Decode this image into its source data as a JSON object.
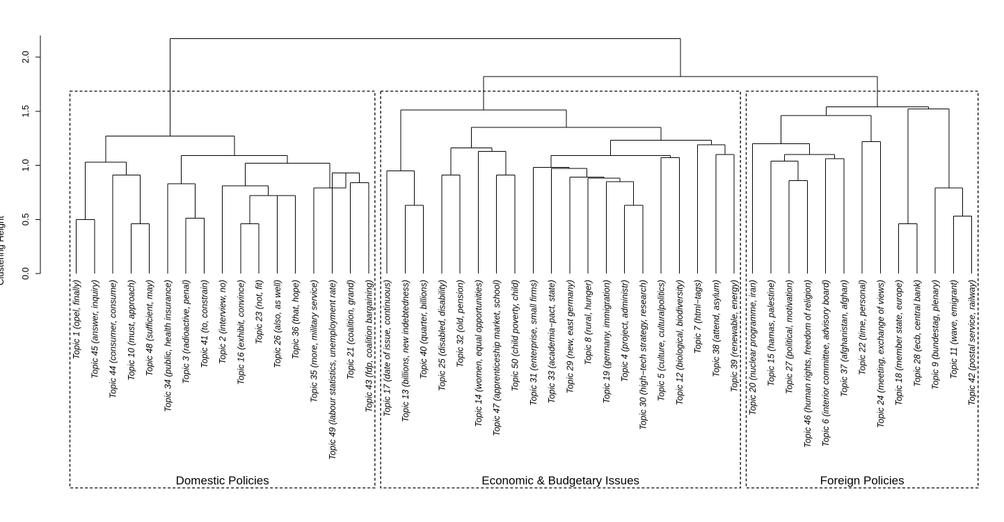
{
  "chart_data": {
    "type": "dendrogram",
    "ylabel": "Clustering Height",
    "ylim": [
      0,
      2.2
    ],
    "yticks": [
      "0.0",
      "0.5",
      "1.0",
      "1.5",
      "2.0"
    ],
    "leaves": [
      "Topic 1 (opel, finally)",
      "Topic 45 (answer, inquiry)",
      "Topic 44 (consumer, consume)",
      "Topic 10 (must, approach)",
      "Topic  48 (sufficient, may)",
      "Topic 34 (public, health insurance)",
      "Topic 3 (radioactive, penal)",
      "Topic 41 (to, constrain)",
      "Topic 2 (interview, no)",
      "Topic 16 (exhibit, convince)",
      "Topic 23 (not, fit)",
      "Topic 26 (also, as well)",
      "Topic 36 (that, hope)",
      "Topic 35 (more, military service)",
      "Topic 49 (labour statistics, unemployment rate)",
      "Topic 21 (coalition, grand)",
      "Topic 43 (fdp, coalition bargaining)",
      "Topic 17 (date of issue, continuous)",
      "Topic 13 (billions, new indebtedness)",
      "Topic 40 (quarter, billions)",
      "Topic 25 (disabled, disability)",
      "Topic 32 (old, pension)",
      "Topic 14 (women, equal opportunities)",
      "Topic 47 (apprenticeship market, school)",
      "Topic 50 (child poverty, child)",
      "Topic 31 (enterprise, small firms)",
      "Topic 33 (academia−pact, state)",
      "Topic 29 (new, east germany)",
      "Topic 8 (rural, hunger)",
      "Topic 19 (germany, immigration)",
      "Topic 4 (project, administr)",
      "Topic 30 (high−tech strategy, research)",
      "Topic 5 (culture, culturalpolitics)",
      "Topic 12 (biological, biodiversity)",
      "Topic 7 (html−tags)",
      "Topic 38 (attend, asylum)",
      "Topic 39 (renewable, energy)",
      "Topic 20 (nuclear programme, iran)",
      "Topic 15 (hamas, palestine)",
      "Topic 27 (political, motivation)",
      "Topic 46 (human rights, freedom of religion)",
      "Topic 6 (interior committee, advisory board)",
      "Topic 37 (afghanistan, afghan)",
      "Topic 22 (time, personal)",
      "Topic 24 (meeting, exchange of views)",
      "Topic 18 (member state, europe)",
      "Topic 28 (ecb, central bank)",
      "Topic 9 (bundestag, plenary)",
      "Topic 11 (wave, emigrant)",
      "Topic 42 (postal service, railway)"
    ],
    "merges": [
      [
        0,
        1,
        0.5
      ],
      [
        3,
        4,
        0.46
      ],
      [
        2,
        51,
        0.91
      ],
      [
        50,
        52,
        1.03
      ],
      [
        6,
        7,
        0.51
      ],
      [
        5,
        54,
        0.83
      ],
      [
        9,
        10,
        0.46
      ],
      [
        11,
        12,
        0.72
      ],
      [
        56,
        57,
        0.72
      ],
      [
        8,
        58,
        0.81
      ],
      [
        15,
        16,
        0.84
      ],
      [
        14,
        60,
        0.93
      ],
      [
        13,
        61,
        0.79
      ],
      [
        59,
        62,
        1.02
      ],
      [
        55,
        63,
        1.09
      ],
      [
        53,
        64,
        1.27
      ],
      [
        19,
        18,
        0.63
      ],
      [
        17,
        66,
        0.95
      ],
      [
        20,
        21,
        0.91
      ],
      [
        23,
        24,
        0.91
      ],
      [
        22,
        69,
        1.13
      ],
      [
        68,
        70,
        1.16
      ],
      [
        30,
        31,
        0.63
      ],
      [
        29,
        72,
        0.85
      ],
      [
        28,
        73,
        0.88
      ],
      [
        27,
        74,
        0.89
      ],
      [
        26,
        75,
        0.97
      ],
      [
        25,
        76,
        0.98
      ],
      [
        32,
        33,
        1.07
      ],
      [
        77,
        78,
        1.09
      ],
      [
        35,
        36,
        1.1
      ],
      [
        34,
        80,
        1.19
      ],
      [
        79,
        81,
        1.23
      ],
      [
        71,
        82,
        1.35
      ],
      [
        67,
        83,
        1.51
      ],
      [
        39,
        40,
        0.86
      ],
      [
        38,
        85,
        1.04
      ],
      [
        41,
        42,
        1.06
      ],
      [
        86,
        87,
        1.1
      ],
      [
        37,
        88,
        1.2
      ],
      [
        43,
        44,
        1.22
      ],
      [
        89,
        90,
        1.46
      ],
      [
        45,
        46,
        0.46
      ],
      [
        48,
        49,
        0.53
      ],
      [
        47,
        93,
        0.79
      ],
      [
        92,
        94,
        1.52
      ],
      [
        91,
        95,
        1.54
      ],
      [
        84,
        96,
        1.82
      ],
      [
        65,
        97,
        2.17
      ]
    ],
    "clusters": [
      {
        "label": "Domestic Policies",
        "first": 0,
        "last": 16
      },
      {
        "label": "Economic & Budgetary Issues",
        "first": 17,
        "last": 36
      },
      {
        "label": "Foreign Policies",
        "first": 37,
        "last": 49
      }
    ]
  }
}
